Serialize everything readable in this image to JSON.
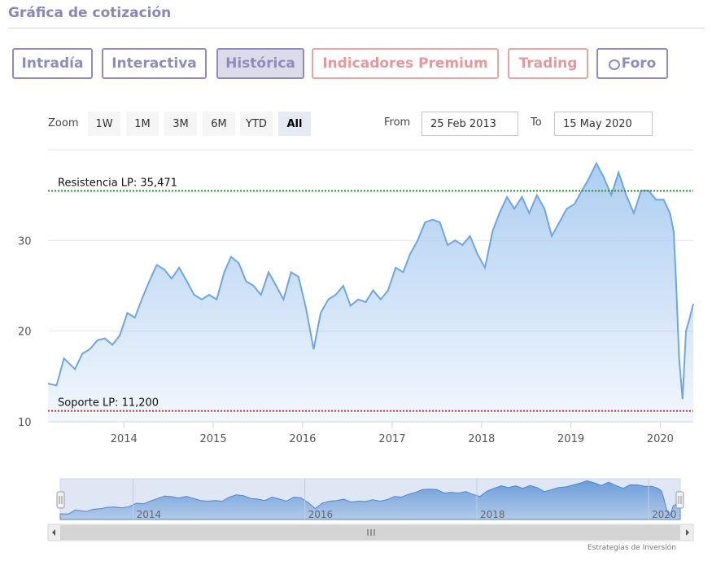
{
  "page": {
    "title": "Gráfica de cotización",
    "credit": "Estrategias de Inversión"
  },
  "tabs": [
    {
      "label": "Intradía",
      "style": "default"
    },
    {
      "label": "Interactiva",
      "style": "default"
    },
    {
      "label": "Histórica",
      "style": "active"
    },
    {
      "label": "Indicadores Premium",
      "style": "premium"
    },
    {
      "label": "Trading",
      "style": "premium"
    },
    {
      "label": "Foro",
      "style": "default",
      "icon": "chat-bubble-icon"
    }
  ],
  "zoom": {
    "label": "Zoom",
    "options": [
      "1W",
      "1M",
      "3M",
      "6M",
      "YTD",
      "All"
    ],
    "selected": "All"
  },
  "range": {
    "from_label": "From",
    "from_value": "25 Feb 2013",
    "to_label": "To",
    "to_value": "15 May 2020"
  },
  "colors": {
    "accent": "#8f8bbf",
    "premium": "#e49a9a",
    "series_line": "#6ea6e0",
    "series_fill": "#a9cbf0",
    "resistance": "#2e8b2e",
    "support": "#cc3333"
  },
  "chart_data": {
    "type": "area",
    "title": "",
    "xlabel": "",
    "ylabel": "",
    "x_ticks": [
      "2014",
      "2015",
      "2016",
      "2017",
      "2018",
      "2019",
      "2020"
    ],
    "y_ticks": [
      10,
      20,
      30
    ],
    "ylim": [
      10,
      40
    ],
    "xlim": [
      "2013-02-25",
      "2020-05-15"
    ],
    "grid": "horizontal",
    "annotations": [
      {
        "label": "Resistencia LP: 35,471",
        "value": 35.471,
        "color": "#2e8b2e"
      },
      {
        "label": "Soporte LP: 11,200",
        "value": 11.2,
        "color": "#cc3333"
      }
    ],
    "navigator_ticks": [
      "2014",
      "2016",
      "2018",
      "2020"
    ],
    "series": [
      {
        "x": [
          "2013-02-25",
          "2013-04-01",
          "2013-05-01",
          "2013-06-15",
          "2013-07-15",
          "2013-08-15",
          "2013-09-15",
          "2013-10-15",
          "2013-11-15",
          "2013-12-15",
          "2014-01-15",
          "2014-02-15",
          "2014-03-15",
          "2014-04-15",
          "2014-05-15",
          "2014-06-15",
          "2014-07-15",
          "2014-08-15",
          "2014-09-15",
          "2014-10-15",
          "2014-11-15",
          "2014-12-15",
          "2015-01-15",
          "2015-02-15",
          "2015-03-15",
          "2015-04-15",
          "2015-05-15",
          "2015-06-15",
          "2015-07-15",
          "2015-08-15",
          "2015-09-15",
          "2015-10-15",
          "2015-11-15",
          "2015-12-15",
          "2016-01-15",
          "2016-02-15",
          "2016-03-15",
          "2016-04-15",
          "2016-05-15",
          "2016-06-15",
          "2016-07-15",
          "2016-08-15",
          "2016-09-15",
          "2016-10-15",
          "2016-11-15",
          "2016-12-15",
          "2017-01-15",
          "2017-02-15",
          "2017-03-15",
          "2017-04-15",
          "2017-05-15",
          "2017-06-15",
          "2017-07-15",
          "2017-08-15",
          "2017-09-15",
          "2017-10-15",
          "2017-11-15",
          "2017-12-15",
          "2018-01-15",
          "2018-02-15",
          "2018-03-15",
          "2018-04-15",
          "2018-05-15",
          "2018-06-15",
          "2018-07-15",
          "2018-08-15",
          "2018-09-15",
          "2018-10-15",
          "2018-11-15",
          "2018-12-15",
          "2019-01-15",
          "2019-02-15",
          "2019-03-15",
          "2019-04-15",
          "2019-05-15",
          "2019-06-15",
          "2019-07-15",
          "2019-08-15",
          "2019-09-15",
          "2019-10-15",
          "2019-11-15",
          "2019-12-15",
          "2020-01-15",
          "2020-02-10",
          "2020-02-25",
          "2020-03-05",
          "2020-03-18",
          "2020-04-01",
          "2020-04-15",
          "2020-05-01",
          "2020-05-15"
        ],
        "values": [
          14.2,
          14.0,
          17.0,
          15.8,
          17.5,
          18.0,
          19.0,
          19.2,
          18.5,
          19.5,
          22.0,
          21.5,
          23.5,
          25.5,
          27.3,
          26.8,
          25.8,
          27.0,
          25.5,
          24.0,
          23.5,
          24.0,
          23.5,
          26.5,
          28.2,
          27.5,
          25.5,
          25.0,
          24.0,
          26.5,
          25.0,
          23.5,
          26.5,
          26.0,
          22.5,
          18.0,
          22.0,
          23.5,
          24.0,
          25.0,
          22.8,
          23.5,
          23.2,
          24.5,
          23.5,
          24.5,
          27.0,
          26.5,
          28.5,
          30.0,
          32.0,
          32.3,
          32.0,
          29.5,
          30.0,
          29.5,
          30.5,
          28.5,
          27.0,
          31.0,
          33.0,
          34.8,
          33.5,
          34.8,
          33.0,
          35.0,
          33.5,
          30.5,
          32.0,
          33.5,
          34.0,
          35.5,
          36.8,
          38.5,
          37.0,
          35.0,
          37.5,
          35.0,
          33.0,
          35.5,
          35.5,
          34.5,
          34.5,
          33.0,
          31.0,
          26.0,
          17.0,
          12.5,
          20.0,
          21.5,
          23.0
        ]
      }
    ]
  }
}
